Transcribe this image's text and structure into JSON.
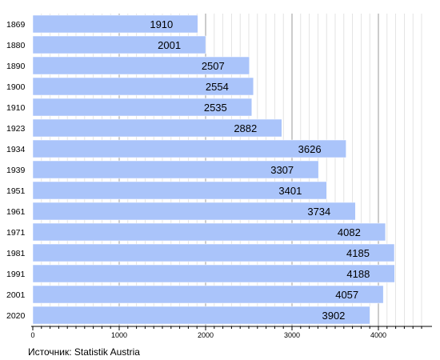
{
  "chart_data": {
    "type": "bar",
    "orientation": "horizontal",
    "categories": [
      "1869",
      "1880",
      "1890",
      "1900",
      "1910",
      "1923",
      "1934",
      "1939",
      "1951",
      "1961",
      "1971",
      "1981",
      "1991",
      "2001",
      "2020"
    ],
    "values": [
      1910,
      2001,
      2507,
      2554,
      2535,
      2882,
      3626,
      3307,
      3401,
      3734,
      4082,
      4185,
      4188,
      4057,
      3902
    ],
    "x_ticks": [
      0,
      1000,
      2000,
      3000,
      4000
    ],
    "xlim": [
      0,
      4500
    ],
    "grid": true,
    "bar_color": "#aac4fa",
    "bar_edge_color": "#ffffff",
    "grid_color_major": "#999999",
    "grid_color_minor": "#dddddd"
  },
  "source_text": "Источник: Statistik Austria"
}
